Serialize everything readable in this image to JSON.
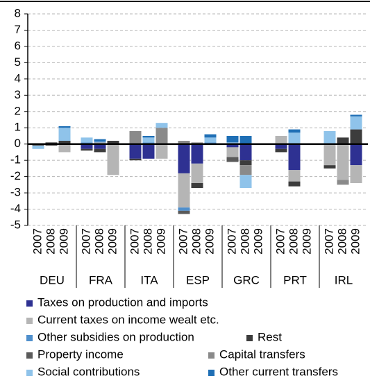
{
  "chart_data": {
    "type": "stacked_bar",
    "groups": [
      "DEU",
      "FRA",
      "ITA",
      "ESP",
      "GRC",
      "PRT",
      "IRL"
    ],
    "subcategories": [
      "2007",
      "2008",
      "2009"
    ],
    "ylim": [
      -5,
      8
    ],
    "yticks": [
      -5,
      -4,
      -3,
      -2,
      -1,
      0,
      1,
      2,
      3,
      4,
      5,
      6,
      7,
      8
    ],
    "grid": true,
    "series": [
      {
        "name": "Taxes on production and imports",
        "color": "#2e3192",
        "values": [
          0,
          0,
          0,
          -0.3,
          -0.3,
          0,
          -0.9,
          -0.9,
          0,
          -1.8,
          -1.2,
          0,
          -0.2,
          -1.0,
          0,
          -0.3,
          -1.6,
          0,
          0,
          0,
          -1.3
        ]
      },
      {
        "name": "Current taxes on income wealt etc.",
        "color": "#b5b5b5",
        "values": [
          0,
          0,
          -0.5,
          0,
          0.1,
          -1.9,
          0,
          0,
          -0.9,
          -2.1,
          -1.2,
          0,
          -0.6,
          0,
          0,
          0.5,
          -0.7,
          0,
          -1.3,
          -2.2,
          -1.1
        ]
      },
      {
        "name": "Other subsidies on production",
        "color": "#4f8fcc",
        "values": [
          0,
          0,
          0,
          0.1,
          0.1,
          0,
          0,
          0.1,
          0,
          -0.2,
          0,
          0.1,
          0,
          0,
          0,
          0,
          0,
          0,
          0,
          0,
          0
        ]
      },
      {
        "name": "Rest",
        "color": "#3c3c3c",
        "values": [
          0,
          0.1,
          0.2,
          -0.1,
          -0.2,
          0.2,
          -0.1,
          0,
          0,
          0,
          -0.3,
          0,
          0,
          -0.3,
          0,
          -0.2,
          -0.3,
          0,
          -0.2,
          0.4,
          0.9
        ]
      },
      {
        "name": "Property income",
        "color": "#5a5a5a",
        "values": [
          -0.1,
          -0.1,
          0,
          0,
          0,
          0,
          0,
          0,
          0,
          -0.2,
          0,
          0,
          -0.3,
          0,
          0,
          0,
          0,
          0,
          0,
          0,
          0
        ]
      },
      {
        "name": "Capital transfers",
        "color": "#8a8a8a",
        "values": [
          0,
          0,
          0,
          0,
          0,
          0,
          0.8,
          0,
          1.0,
          0.2,
          0.1,
          0,
          0,
          -0.6,
          0,
          0,
          0,
          0,
          0,
          -0.3,
          0
        ]
      },
      {
        "name": "Social contributions",
        "color": "#8fc3ea",
        "values": [
          -0.2,
          0,
          0.8,
          0.3,
          0,
          0,
          0,
          0.3,
          0.3,
          0,
          0,
          0.3,
          0.1,
          -0.8,
          0,
          0,
          0.7,
          0,
          0.8,
          0,
          0.8
        ]
      },
      {
        "name": "Other current transfers",
        "color": "#1f6fb5",
        "values": [
          0,
          0,
          0.1,
          0,
          0.1,
          0,
          0,
          0.1,
          0,
          0,
          0,
          0.2,
          0.4,
          0.5,
          0,
          0,
          0.2,
          0,
          0,
          0,
          0.1
        ]
      }
    ]
  }
}
